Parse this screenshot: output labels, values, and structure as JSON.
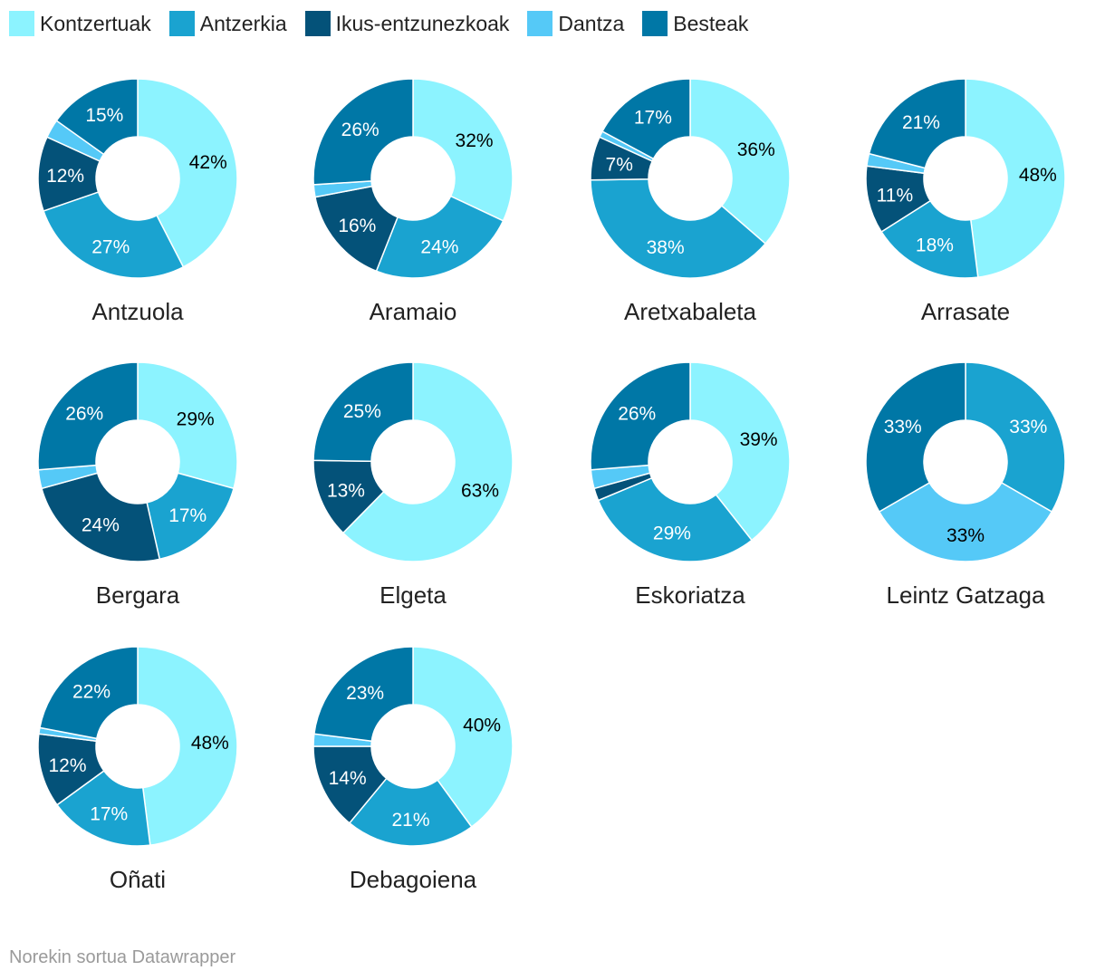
{
  "legend": [
    {
      "name": "Kontzertuak",
      "color": "#8cf3ff"
    },
    {
      "name": "Antzerkia",
      "color": "#1aa3d0"
    },
    {
      "name": "Ikus-entzunezkoak",
      "color": "#045279"
    },
    {
      "name": "Dantza",
      "color": "#55c9f7"
    },
    {
      "name": "Besteak",
      "color": "#0077a6"
    }
  ],
  "footer": {
    "text": "Norekin sortua Datawrapper"
  },
  "chart_data": {
    "type": "donut",
    "categories": [
      "Kontzertuak",
      "Antzerkia",
      "Ikus-entzunezkoak",
      "Dantza",
      "Besteak"
    ],
    "charts": [
      {
        "title": "Antzuola",
        "values": [
          42,
          27,
          12,
          3,
          15
        ],
        "labels": [
          "42%",
          "27%",
          "12%",
          "",
          "15%"
        ]
      },
      {
        "title": "Aramaio",
        "values": [
          32,
          24,
          16,
          2,
          26
        ],
        "labels": [
          "32%",
          "24%",
          "16%",
          "",
          "26%"
        ]
      },
      {
        "title": "Aretxabaleta",
        "values": [
          36,
          38,
          7,
          1,
          17
        ],
        "labels": [
          "36%",
          "38%",
          "7%",
          "",
          "17%"
        ]
      },
      {
        "title": "Arrasate",
        "values": [
          48,
          18,
          11,
          2,
          21
        ],
        "labels": [
          "48%",
          "18%",
          "11%",
          "",
          "21%"
        ]
      },
      {
        "title": "Bergara",
        "values": [
          29,
          17,
          24,
          3,
          26
        ],
        "labels": [
          "29%",
          "17%",
          "24%",
          "",
          "26%"
        ]
      },
      {
        "title": "Elgeta",
        "values": [
          63,
          0,
          13,
          0,
          25
        ],
        "labels": [
          "63%",
          "",
          "13%",
          "",
          "25%"
        ]
      },
      {
        "title": "Eskoriatza",
        "values": [
          39,
          29,
          2,
          3,
          26
        ],
        "labels": [
          "39%",
          "29%",
          "",
          "",
          "26%"
        ]
      },
      {
        "title": "Leintz Gatzaga",
        "values": [
          0,
          33,
          0,
          33,
          33
        ],
        "labels": [
          "",
          "33%",
          "",
          "33%",
          "33%"
        ]
      },
      {
        "title": "Oñati",
        "values": [
          48,
          17,
          12,
          1,
          22
        ],
        "labels": [
          "48%",
          "17%",
          "12%",
          "",
          "22%"
        ]
      },
      {
        "title": "Debagoiena",
        "values": [
          40,
          21,
          14,
          2,
          23
        ],
        "labels": [
          "40%",
          "21%",
          "14%",
          "",
          "23%"
        ]
      }
    ]
  }
}
